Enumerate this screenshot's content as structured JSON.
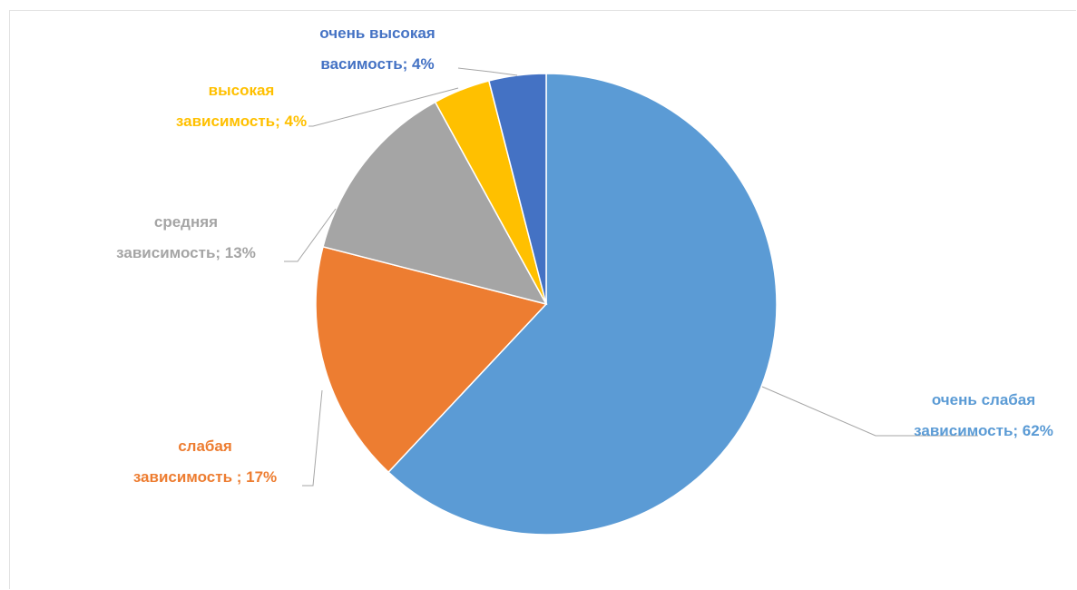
{
  "chart_data": {
    "type": "pie",
    "title": "",
    "start_angle_deg": 0,
    "direction": "clockwise",
    "show_legend": false,
    "slices": [
      {
        "label": "очень слабая зависимость",
        "value": 62,
        "color": "#5b9bd5",
        "label_lines": [
          "очень слабая",
          "зависимость; 62%"
        ]
      },
      {
        "label": "слабая зависимость",
        "value": 17,
        "color": "#ed7d31",
        "label_lines": [
          "слабая",
          "зависимость ; 17%"
        ]
      },
      {
        "label": "средняя зависимость",
        "value": 13,
        "color": "#a5a5a5",
        "label_lines": [
          "средняя",
          "зависимость; 13%"
        ]
      },
      {
        "label": "высокая зависимость",
        "value": 4,
        "color": "#ffc000",
        "label_lines": [
          "высокая",
          "зависимость; 4%"
        ]
      },
      {
        "label": "очень высокая васимость",
        "value": 4,
        "color": "#4472c4",
        "label_lines": [
          "очень высокая",
          "васимость; 4%"
        ]
      }
    ]
  }
}
